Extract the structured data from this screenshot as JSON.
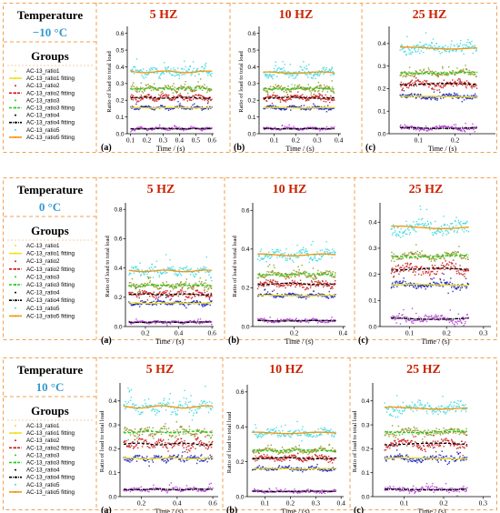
{
  "figure": {
    "rows": [
      {
        "temperature_heading": "Temperature",
        "temperature_value": "−10 °C",
        "groups_heading": "Groups",
        "legend": [
          {
            "label": "AC-13_ratio1",
            "style": "dots"
          },
          {
            "label": "AC-13_ratio1 fitting",
            "style": "line"
          },
          {
            "label": "AC-13_ratio2",
            "style": "dots"
          },
          {
            "label": "AC-13_ratio2 fitting",
            "style": "dash"
          },
          {
            "label": "AC-13_ratio3",
            "style": "dots"
          },
          {
            "label": "AC-13_ratio3 fitting",
            "style": "dash"
          },
          {
            "label": "AC-13_ratio4",
            "style": "dots"
          },
          {
            "label": "AC-13_ratio4 fitting",
            "style": "dashdot"
          },
          {
            "label": "AC-13_ratio5",
            "style": "dots"
          },
          {
            "label": "AC-13_ratio5 fitting",
            "style": "line"
          }
        ]
      },
      {
        "temperature_heading": "Temperature",
        "temperature_value": "0 °C",
        "groups_heading": "Groups",
        "legend": [
          {
            "label": "AC-13_ratio1",
            "style": "dots"
          },
          {
            "label": "AC-13_ratio1 fitting",
            "style": "line"
          },
          {
            "label": "AC-13_ratio2",
            "style": "dots"
          },
          {
            "label": "AC-13_ratio2 fitting",
            "style": "dash"
          },
          {
            "label": "AC-13_ratio3",
            "style": "dots"
          },
          {
            "label": "AC-13_ratio3 fitting",
            "style": "dash"
          },
          {
            "label": "AC-13_ratio4",
            "style": "dots"
          },
          {
            "label": "AC-13_ratio4 fitting",
            "style": "dashdot"
          },
          {
            "label": "AC-13_ratio5",
            "style": "dots"
          },
          {
            "label": "AC-13_ratio5 fitting",
            "style": "line"
          }
        ]
      },
      {
        "temperature_heading": "Temperature",
        "temperature_value": "10 °C",
        "groups_heading": "Groups",
        "legend": [
          {
            "label": "AC-13_ratio1",
            "style": "dots"
          },
          {
            "label": "AC-13_ratio1 fitting",
            "style": "line"
          },
          {
            "label": "AC-13_ratio2",
            "style": "dots"
          },
          {
            "label": "AC-13_ratio2 fitting",
            "style": "dash"
          },
          {
            "label": "AC-13_ratio3",
            "style": "dots"
          },
          {
            "label": "AC-13_ratio3 fitting",
            "style": "dash"
          },
          {
            "label": "AC-13_ratio4",
            "style": "dots"
          },
          {
            "label": "AC-13_ratio4 fitting",
            "style": "dashdot"
          },
          {
            "label": "AC-13_ratio5",
            "style": "dots"
          },
          {
            "label": "AC-13_ratio5 fitting",
            "style": "line"
          }
        ]
      }
    ],
    "frequencies": [
      "5 HZ",
      "10 HZ",
      "25 HZ"
    ]
  },
  "colors": {
    "border": "#f0a050",
    "temperature_value": "#3399cc",
    "frequency_title": "#cc2200",
    "ratio5": "#3fd8e0",
    "ratio3": "#8a9a20",
    "ratio2": "#cc1a1a",
    "ratio1": "#1a22bb",
    "ratio4": "#b040d0",
    "fit_orange": "#f2960c",
    "fit_yellow": "#f0e020",
    "fit_green": "#22cc22",
    "fit_black": "#000000"
  },
  "chart_data": [
    {
      "type": "scatter",
      "panel_letter": "(a)",
      "title": "5 HZ",
      "xlabel": "Time / (s)",
      "ylabel": "Ratio of load to total load",
      "xlim": [
        0.08,
        0.61
      ],
      "ylim": [
        0.0,
        0.62
      ],
      "xticks": [
        "0.1",
        "0.2",
        "0.3",
        "0.4",
        "0.5",
        "0.6"
      ],
      "xtick_values": [
        0.1,
        0.2,
        0.3,
        0.4,
        0.5,
        0.6
      ],
      "yticks": [
        "0.0",
        "0.1",
        "0.2",
        "0.3",
        "0.4",
        "0.5",
        "0.6"
      ],
      "ytick_values": [
        0.0,
        0.1,
        0.2,
        0.3,
        0.4,
        0.5,
        0.6
      ],
      "x_range": [
        0.1,
        0.6
      ],
      "series": [
        {
          "name": "AC-13_ratio5",
          "mean": 0.37,
          "spread": 0.04
        },
        {
          "name": "AC-13_ratio3",
          "mean": 0.27,
          "spread": 0.025
        },
        {
          "name": "AC-13_ratio2",
          "mean": 0.215,
          "spread": 0.025
        },
        {
          "name": "AC-13_ratio1",
          "mean": 0.155,
          "spread": 0.015
        },
        {
          "name": "AC-13_ratio4",
          "mean": 0.03,
          "spread": 0.012
        }
      ]
    },
    {
      "type": "scatter",
      "panel_letter": "(b)",
      "title": "10 HZ",
      "xlabel": "Time / (s)",
      "ylabel": "Ratio of load to total load",
      "xlim": [
        0.03,
        0.41
      ],
      "ylim": [
        0.0,
        0.62
      ],
      "xticks": [
        "0.1",
        "0.2",
        "0.3",
        "0.4"
      ],
      "xtick_values": [
        0.1,
        0.2,
        0.3,
        0.4
      ],
      "yticks": [
        "0.0",
        "0.1",
        "0.2",
        "0.3",
        "0.4",
        "0.5",
        "0.6"
      ],
      "ytick_values": [
        0.0,
        0.1,
        0.2,
        0.3,
        0.4,
        0.5,
        0.6
      ],
      "x_range": [
        0.05,
        0.38
      ],
      "series": [
        {
          "name": "AC-13_ratio5",
          "mean": 0.365,
          "spread": 0.035
        },
        {
          "name": "AC-13_ratio3",
          "mean": 0.27,
          "spread": 0.025
        },
        {
          "name": "AC-13_ratio2",
          "mean": 0.215,
          "spread": 0.025
        },
        {
          "name": "AC-13_ratio1",
          "mean": 0.155,
          "spread": 0.015
        },
        {
          "name": "AC-13_ratio4",
          "mean": 0.03,
          "spread": 0.012
        }
      ]
    },
    {
      "type": "scatter",
      "panel_letter": "(c)",
      "title": "25 HZ",
      "xlabel": "Time / (s)",
      "ylabel": "",
      "xlim": [
        0.02,
        0.31
      ],
      "ylim": [
        0.0,
        0.46
      ],
      "xticks": [
        "0.1",
        "0.2"
      ],
      "xtick_values": [
        0.1,
        0.2
      ],
      "yticks": [
        "0.0",
        "0.1",
        "0.2",
        "0.3",
        "0.4"
      ],
      "ytick_values": [
        0.0,
        0.1,
        0.2,
        0.3,
        0.4
      ],
      "x_range": [
        0.05,
        0.26
      ],
      "series": [
        {
          "name": "AC-13_ratio5",
          "mean": 0.38,
          "spread": 0.035
        },
        {
          "name": "AC-13_ratio3",
          "mean": 0.27,
          "spread": 0.02
        },
        {
          "name": "AC-13_ratio2",
          "mean": 0.22,
          "spread": 0.025
        },
        {
          "name": "AC-13_ratio1",
          "mean": 0.165,
          "spread": 0.015
        },
        {
          "name": "AC-13_ratio4",
          "mean": 0.025,
          "spread": 0.015
        }
      ]
    },
    {
      "type": "scatter",
      "panel_letter": "(a)",
      "title": "5 HZ",
      "xlabel": "Time / (s)",
      "ylabel": "Ratio of load to total load",
      "xlim": [
        0.08,
        0.61
      ],
      "ylim": [
        0.0,
        0.82
      ],
      "xticks": [
        "0.2",
        "0.4",
        "0.6"
      ],
      "xtick_values": [
        0.2,
        0.4,
        0.6
      ],
      "yticks": [
        "0.0",
        "0.2",
        "0.4",
        "0.6",
        "0.8"
      ],
      "ytick_values": [
        0.0,
        0.2,
        0.4,
        0.6,
        0.8
      ],
      "x_range": [
        0.1,
        0.6
      ],
      "series": [
        {
          "name": "AC-13_ratio5",
          "mean": 0.38,
          "spread": 0.045
        },
        {
          "name": "AC-13_ratio3",
          "mean": 0.28,
          "spread": 0.03
        },
        {
          "name": "AC-13_ratio2",
          "mean": 0.22,
          "spread": 0.03
        },
        {
          "name": "AC-13_ratio1",
          "mean": 0.16,
          "spread": 0.02
        },
        {
          "name": "AC-13_ratio4",
          "mean": 0.03,
          "spread": 0.015
        }
      ]
    },
    {
      "type": "scatter",
      "panel_letter": "(b)",
      "title": "10 HZ",
      "xlabel": "Time / (s)",
      "ylabel": "Ratio of load to total load",
      "xlim": [
        0.03,
        0.41
      ],
      "ylim": [
        0.0,
        0.62
      ],
      "xticks": [
        "0.2",
        "0.4"
      ],
      "xtick_values": [
        0.2,
        0.4
      ],
      "yticks": [
        "0.0",
        "0.2",
        "0.4",
        "0.6"
      ],
      "ytick_values": [
        0.0,
        0.2,
        0.4,
        0.6
      ],
      "x_range": [
        0.05,
        0.37
      ],
      "series": [
        {
          "name": "AC-13_ratio5",
          "mean": 0.37,
          "spread": 0.04
        },
        {
          "name": "AC-13_ratio3",
          "mean": 0.27,
          "spread": 0.025
        },
        {
          "name": "AC-13_ratio2",
          "mean": 0.22,
          "spread": 0.03
        },
        {
          "name": "AC-13_ratio1",
          "mean": 0.16,
          "spread": 0.015
        },
        {
          "name": "AC-13_ratio4",
          "mean": 0.03,
          "spread": 0.012
        }
      ]
    },
    {
      "type": "scatter",
      "panel_letter": "(c)",
      "title": "25 HZ",
      "xlabel": "Time / (s)",
      "ylabel": "",
      "xlim": [
        0.02,
        0.32
      ],
      "ylim": [
        0.0,
        0.46
      ],
      "xticks": [
        "0.1",
        "0.2",
        "0.3"
      ],
      "xtick_values": [
        0.1,
        0.2,
        0.3
      ],
      "yticks": [
        "0.0",
        "0.1",
        "0.2",
        "0.3",
        "0.4"
      ],
      "ytick_values": [
        0.0,
        0.1,
        0.2,
        0.3,
        0.4
      ],
      "x_range": [
        0.05,
        0.26
      ],
      "series": [
        {
          "name": "AC-13_ratio5",
          "mean": 0.38,
          "spread": 0.04
        },
        {
          "name": "AC-13_ratio3",
          "mean": 0.27,
          "spread": 0.02
        },
        {
          "name": "AC-13_ratio2",
          "mean": 0.22,
          "spread": 0.03
        },
        {
          "name": "AC-13_ratio1",
          "mean": 0.16,
          "spread": 0.02
        },
        {
          "name": "AC-13_ratio4",
          "mean": 0.03,
          "spread": 0.02
        }
      ]
    },
    {
      "type": "scatter",
      "panel_letter": "(a)",
      "title": "5 HZ",
      "xlabel": "Time / (s)",
      "ylabel": "Ratio of load to total load",
      "xlim": [
        0.08,
        0.63
      ],
      "ylim": [
        0.0,
        0.46
      ],
      "xticks": [
        "0.2",
        "0.4",
        "0.6"
      ],
      "xtick_values": [
        0.2,
        0.4,
        0.6
      ],
      "yticks": [
        "0.0",
        "0.1",
        "0.2",
        "0.3",
        "0.4"
      ],
      "ytick_values": [
        0.0,
        0.1,
        0.2,
        0.3,
        0.4
      ],
      "x_range": [
        0.1,
        0.6
      ],
      "series": [
        {
          "name": "AC-13_ratio5",
          "mean": 0.375,
          "spread": 0.04
        },
        {
          "name": "AC-13_ratio3",
          "mean": 0.27,
          "spread": 0.025
        },
        {
          "name": "AC-13_ratio2",
          "mean": 0.22,
          "spread": 0.03
        },
        {
          "name": "AC-13_ratio1",
          "mean": 0.16,
          "spread": 0.02
        },
        {
          "name": "AC-13_ratio4",
          "mean": 0.03,
          "spread": 0.012
        }
      ]
    },
    {
      "type": "scatter",
      "panel_letter": "(b)",
      "title": "10 HZ",
      "xlabel": "Time / (s)",
      "ylabel": "Ratio of load to total load",
      "xlim": [
        0.03,
        0.41
      ],
      "ylim": [
        0.0,
        0.62
      ],
      "xticks": [
        "0.1",
        "0.2",
        "0.3",
        "0.4"
      ],
      "xtick_values": [
        0.1,
        0.2,
        0.3,
        0.4
      ],
      "yticks": [
        "0.0",
        "0.2",
        "0.4",
        "0.6"
      ],
      "ytick_values": [
        0.0,
        0.2,
        0.4,
        0.6
      ],
      "x_range": [
        0.05,
        0.38
      ],
      "series": [
        {
          "name": "AC-13_ratio5",
          "mean": 0.365,
          "spread": 0.035
        },
        {
          "name": "AC-13_ratio3",
          "mean": 0.265,
          "spread": 0.02
        },
        {
          "name": "AC-13_ratio2",
          "mean": 0.22,
          "spread": 0.025
        },
        {
          "name": "AC-13_ratio1",
          "mean": 0.16,
          "spread": 0.015
        },
        {
          "name": "AC-13_ratio4",
          "mean": 0.03,
          "spread": 0.012
        }
      ]
    },
    {
      "type": "scatter",
      "panel_letter": "(c)",
      "title": "25 HZ",
      "xlabel": "Time / (s)",
      "ylabel": "Ratio of load to total load",
      "xlim": [
        0.02,
        0.32
      ],
      "ylim": [
        0.0,
        0.46
      ],
      "xticks": [
        "0.1",
        "0.2",
        "0.3"
      ],
      "xtick_values": [
        0.1,
        0.2,
        0.3
      ],
      "yticks": [
        "0.0",
        "0.1",
        "0.2",
        "0.3",
        "0.4"
      ],
      "ytick_values": [
        0.0,
        0.1,
        0.2,
        0.3,
        0.4
      ],
      "x_range": [
        0.05,
        0.26
      ],
      "series": [
        {
          "name": "AC-13_ratio5",
          "mean": 0.37,
          "spread": 0.035
        },
        {
          "name": "AC-13_ratio3",
          "mean": 0.27,
          "spread": 0.02
        },
        {
          "name": "AC-13_ratio2",
          "mean": 0.22,
          "spread": 0.03
        },
        {
          "name": "AC-13_ratio1",
          "mean": 0.16,
          "spread": 0.02
        },
        {
          "name": "AC-13_ratio4",
          "mean": 0.03,
          "spread": 0.015
        }
      ]
    }
  ]
}
